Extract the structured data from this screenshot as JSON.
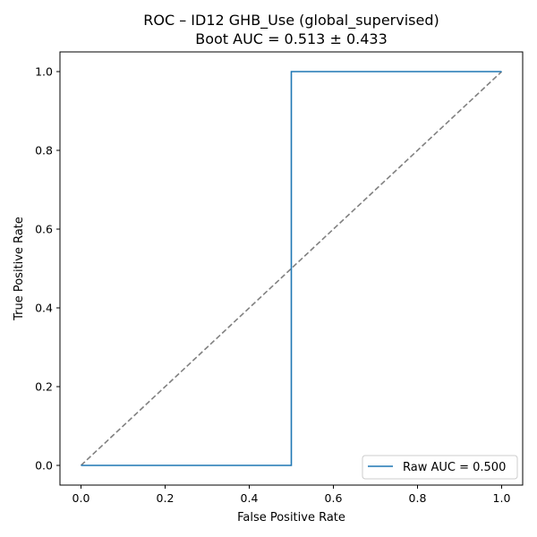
{
  "chart_data": {
    "type": "line",
    "title_line1": "ROC – ID12 GHB_Use (global_supervised)",
    "title_line2": "Boot AUC = 0.513 ± 0.433",
    "xlabel": "False Positive Rate",
    "ylabel": "True Positive Rate",
    "xlim": [
      -0.05,
      1.05
    ],
    "ylim": [
      -0.05,
      1.05
    ],
    "xticks": [
      "0.0",
      "0.2",
      "0.4",
      "0.6",
      "0.8",
      "1.0"
    ],
    "yticks": [
      "0.0",
      "0.2",
      "0.4",
      "0.6",
      "0.8",
      "1.0"
    ],
    "grid": false,
    "legend_position": "lower-right",
    "series": [
      {
        "name": "Raw AUC = 0.500",
        "color": "#1f77b4",
        "style": "solid",
        "x": [
          0.0,
          0.5,
          0.5,
          1.0
        ],
        "y": [
          0.0,
          0.0,
          1.0,
          1.0
        ]
      },
      {
        "color": "#808080",
        "style": "dashed",
        "x": [
          0.0,
          1.0
        ],
        "y": [
          0.0,
          1.0
        ]
      }
    ]
  }
}
